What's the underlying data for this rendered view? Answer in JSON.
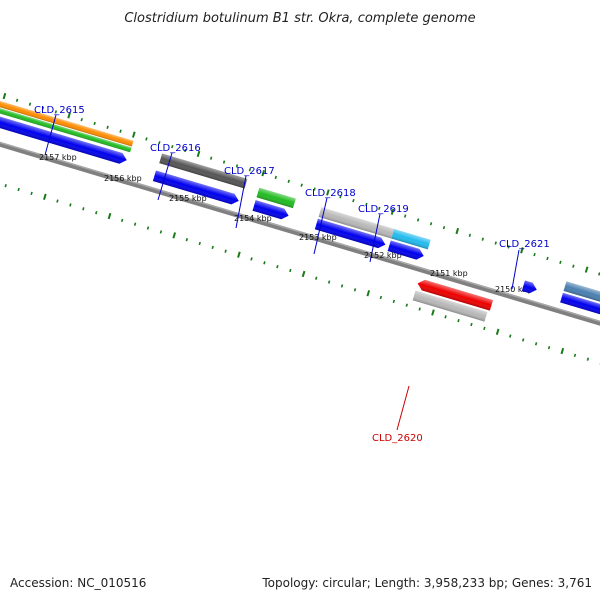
{
  "title": "Clostridium botulinum B1 str. Okra, complete genome",
  "footer": {
    "accession": "Accession: NC_010516",
    "topology": "Topology: circular; Length: 3,958,233 bp; Genes: 3,761"
  },
  "colors": {
    "backbone": "#808080",
    "tick": "#1a7a1a",
    "forward_label": "#0000cc",
    "reverse_label": "#cc0000",
    "cds_blue": "#0000ee",
    "orange": "#ff8c00",
    "green": "#22bb22",
    "dark_gray": "#555555",
    "light_gray": "#b8b8b8",
    "cyan": "#22bbee",
    "red": "#ee0000",
    "steel_blue": "#4a7fb0"
  },
  "scale_labels": [
    "2157 kbp",
    "2156 kbp",
    "2155 kbp",
    "2154 kbp",
    "2153 kbp",
    "2152 kbp",
    "2151 kbp",
    "2150 kbp"
  ],
  "genes": [
    {
      "name": "CLD_2615",
      "strand": "forward"
    },
    {
      "name": "CLD_2616",
      "strand": "forward"
    },
    {
      "name": "CLD_2617",
      "strand": "forward"
    },
    {
      "name": "CLD_2618",
      "strand": "forward"
    },
    {
      "name": "CLD_2619",
      "strand": "forward"
    },
    {
      "name": "CLD_2620",
      "strand": "reverse"
    },
    {
      "name": "CLD_2621",
      "strand": "forward"
    }
  ]
}
